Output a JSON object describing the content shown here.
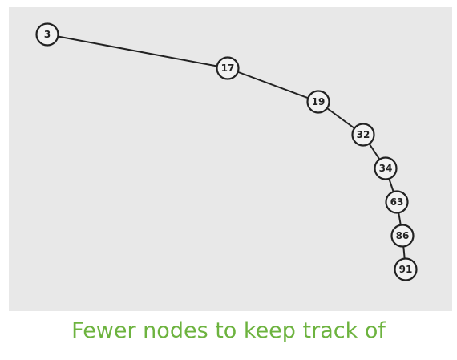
{
  "diagram": {
    "type": "tree-path",
    "nodes": [
      "3",
      "17",
      "19",
      "32",
      "34",
      "63",
      "86",
      "91"
    ],
    "edges": [
      [
        "3",
        "17"
      ],
      [
        "17",
        "19"
      ],
      [
        "19",
        "32"
      ],
      [
        "32",
        "34"
      ],
      [
        "34",
        "63"
      ],
      [
        "63",
        "86"
      ],
      [
        "86",
        "91"
      ]
    ]
  },
  "caption": "Fewer nodes to keep track of",
  "colors": {
    "background_panel": "#e8e8e8",
    "node_fill": "#f2f2f2",
    "node_stroke": "#222222",
    "edge": "#222222",
    "caption": "#6db33f"
  }
}
